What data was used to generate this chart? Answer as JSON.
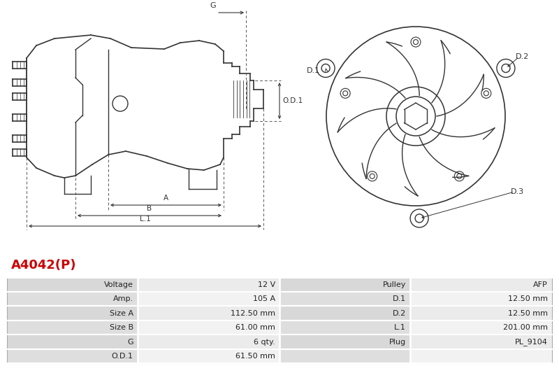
{
  "title": "A4042(P)",
  "title_color": "#cc0000",
  "table_headers_left": [
    "Voltage",
    "Amp.",
    "Size A",
    "Size B",
    "G",
    "O.D.1"
  ],
  "table_values_left": [
    "12 V",
    "105 A",
    "112.50 mm",
    "61.00 mm",
    "6 qty.",
    "61.50 mm"
  ],
  "table_headers_right": [
    "Pulley",
    "D.1",
    "D.2",
    "L.1",
    "Plug",
    ""
  ],
  "table_values_right": [
    "AFP",
    "12.50 mm",
    "12.50 mm",
    "201.00 mm",
    "PL_9104",
    ""
  ],
  "bg_color": "#ffffff",
  "line_color": "#333333",
  "dim_line_color": "#555555",
  "table_label_bg_even": "#d8d8d8",
  "table_label_bg_odd": "#dedede",
  "table_value_bg_even": "#ebebeb",
  "table_value_bg_odd": "#f2f2f2"
}
